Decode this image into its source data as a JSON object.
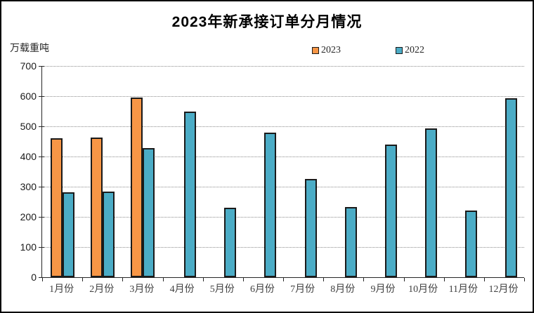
{
  "chart_data": {
    "type": "bar",
    "title": "2023年新承接订单分月情况",
    "unit_label": "万载重吨",
    "xlabel": "",
    "ylabel": "万载重吨",
    "ylim": [
      0,
      700
    ],
    "ytick_step": 100,
    "yticks": [
      700,
      600,
      500,
      400,
      300,
      200,
      100,
      0
    ],
    "grid": "horizontal-dotted",
    "legend_position": "top-center",
    "categories": [
      "1月份",
      "2月份",
      "3月份",
      "4月份",
      "5月份",
      "6月份",
      "7月份",
      "8月份",
      "9月份",
      "10月份",
      "11月份",
      "12月份"
    ],
    "series": [
      {
        "name": "2023",
        "color": "#F79646",
        "values": [
          460,
          462,
          596,
          null,
          null,
          null,
          null,
          null,
          null,
          null,
          null,
          null
        ]
      },
      {
        "name": "2022",
        "color": "#4BACC6",
        "values": [
          281,
          283,
          428,
          548,
          230,
          478,
          326,
          232,
          440,
          493,
          220,
          593
        ]
      }
    ],
    "bar_border_color": "#1a1a1a"
  }
}
